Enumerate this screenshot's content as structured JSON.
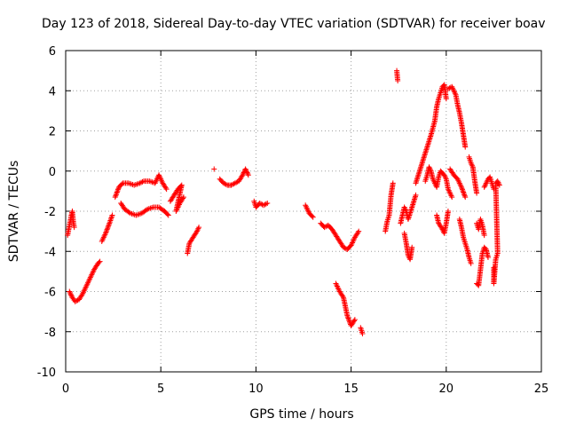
{
  "chart_data": {
    "type": "scatter",
    "title": "Day 123 of 2018, Sidereal Day-to-day VTEC variation (SDTVAR) for receiver boav",
    "xlabel": "GPS time / hours",
    "ylabel": "SDTVAR / TECUs",
    "xlim": [
      0,
      25
    ],
    "ylim": [
      -10,
      6
    ],
    "x_ticks": [
      0,
      5,
      10,
      15,
      20,
      25
    ],
    "y_ticks": [
      -10,
      -8,
      -6,
      -4,
      -2,
      0,
      2,
      4,
      6
    ],
    "grid": true,
    "marker": "+",
    "colors": {
      "series": "#ff0000",
      "grid": "#a0a0a0",
      "axis": "#000000"
    },
    "series": [
      {
        "name": "SDTVAR",
        "segments": [
          [
            [
              0.1,
              -3.2
            ],
            [
              0.2,
              -2.7
            ],
            [
              0.3,
              -2.2
            ],
            [
              0.35,
              -2.0
            ],
            [
              0.4,
              -2.5
            ],
            [
              0.45,
              -2.8
            ]
          ],
          [
            [
              0.2,
              -6.0
            ],
            [
              0.35,
              -6.3
            ],
            [
              0.5,
              -6.5
            ],
            [
              0.7,
              -6.4
            ],
            [
              0.9,
              -6.1
            ],
            [
              1.1,
              -5.7
            ],
            [
              1.3,
              -5.3
            ],
            [
              1.5,
              -4.9
            ],
            [
              1.7,
              -4.6
            ],
            [
              1.8,
              -4.5
            ]
          ],
          [
            [
              1.9,
              -3.5
            ],
            [
              2.1,
              -3.1
            ],
            [
              2.3,
              -2.6
            ],
            [
              2.45,
              -2.2
            ]
          ],
          [
            [
              2.6,
              -1.3
            ],
            [
              2.8,
              -0.8
            ],
            [
              3.0,
              -0.6
            ],
            [
              3.3,
              -0.6
            ],
            [
              3.6,
              -0.7
            ],
            [
              3.9,
              -0.6
            ],
            [
              4.1,
              -0.5
            ],
            [
              4.4,
              -0.5
            ],
            [
              4.7,
              -0.6
            ],
            [
              4.9,
              -0.2
            ],
            [
              5.1,
              -0.6
            ],
            [
              5.3,
              -0.9
            ]
          ],
          [
            [
              2.9,
              -1.6
            ],
            [
              3.1,
              -1.9
            ],
            [
              3.4,
              -2.1
            ],
            [
              3.7,
              -2.2
            ],
            [
              4.0,
              -2.1
            ],
            [
              4.3,
              -1.9
            ],
            [
              4.6,
              -1.8
            ],
            [
              4.9,
              -1.8
            ],
            [
              5.2,
              -2.0
            ],
            [
              5.4,
              -2.2
            ]
          ],
          [
            [
              5.5,
              -1.5
            ],
            [
              5.7,
              -1.2
            ],
            [
              5.9,
              -0.9
            ],
            [
              6.1,
              -0.7
            ],
            [
              5.8,
              -2.0
            ],
            [
              6.0,
              -1.6
            ],
            [
              6.2,
              -1.3
            ]
          ],
          [
            [
              6.4,
              -4.1
            ],
            [
              6.5,
              -3.6
            ],
            [
              6.7,
              -3.3
            ],
            [
              6.9,
              -3.0
            ],
            [
              7.0,
              -2.8
            ]
          ],
          [
            [
              7.8,
              0.1
            ]
          ],
          [
            [
              8.1,
              -0.4
            ],
            [
              8.3,
              -0.6
            ],
            [
              8.5,
              -0.7
            ],
            [
              8.7,
              -0.7
            ],
            [
              8.9,
              -0.6
            ],
            [
              9.1,
              -0.5
            ],
            [
              9.3,
              -0.2
            ],
            [
              9.45,
              0.1
            ],
            [
              9.6,
              -0.2
            ]
          ],
          [
            [
              9.9,
              -1.5
            ],
            [
              10.0,
              -1.8
            ],
            [
              10.2,
              -1.6
            ],
            [
              10.4,
              -1.7
            ],
            [
              10.6,
              -1.6
            ]
          ],
          [
            [
              12.6,
              -1.7
            ],
            [
              12.8,
              -2.1
            ],
            [
              13.0,
              -2.3
            ]
          ],
          [
            [
              13.4,
              -2.6
            ],
            [
              13.6,
              -2.8
            ],
            [
              13.8,
              -2.7
            ],
            [
              14.0,
              -2.9
            ],
            [
              14.2,
              -3.2
            ],
            [
              14.4,
              -3.5
            ],
            [
              14.6,
              -3.8
            ],
            [
              14.8,
              -3.9
            ],
            [
              15.0,
              -3.7
            ],
            [
              15.2,
              -3.3
            ],
            [
              15.4,
              -3.0
            ]
          ],
          [
            [
              14.2,
              -5.6
            ],
            [
              14.4,
              -6.0
            ],
            [
              14.6,
              -6.3
            ],
            [
              14.8,
              -7.2
            ],
            [
              15.0,
              -7.7
            ],
            [
              15.2,
              -7.4
            ]
          ],
          [
            [
              15.5,
              -7.8
            ],
            [
              15.6,
              -8.1
            ]
          ],
          [
            [
              16.8,
              -3.0
            ],
            [
              16.9,
              -2.5
            ],
            [
              17.0,
              -2.2
            ],
            [
              17.1,
              -1.2
            ],
            [
              17.2,
              -0.6
            ]
          ],
          [
            [
              17.4,
              5.0
            ],
            [
              17.45,
              4.5
            ]
          ],
          [
            [
              17.6,
              -2.6
            ],
            [
              17.7,
              -2.2
            ],
            [
              17.8,
              -1.8
            ],
            [
              17.9,
              -2.0
            ],
            [
              18.0,
              -2.4
            ],
            [
              18.2,
              -1.8
            ],
            [
              18.4,
              -1.2
            ]
          ],
          [
            [
              17.8,
              -3.1
            ],
            [
              17.9,
              -3.6
            ],
            [
              18.0,
              -4.2
            ],
            [
              18.1,
              -4.4
            ],
            [
              18.2,
              -3.8
            ]
          ],
          [
            [
              18.4,
              -0.6
            ],
            [
              18.6,
              0.0
            ],
            [
              18.8,
              0.6
            ],
            [
              19.0,
              1.2
            ],
            [
              19.2,
              1.8
            ],
            [
              19.4,
              2.5
            ],
            [
              19.5,
              3.2
            ],
            [
              19.6,
              3.6
            ],
            [
              19.7,
              3.9
            ],
            [
              19.8,
              4.2
            ],
            [
              19.9,
              4.3
            ],
            [
              20.0,
              3.6
            ]
          ],
          [
            [
              18.9,
              -0.5
            ],
            [
              19.0,
              -0.2
            ],
            [
              19.1,
              0.2
            ],
            [
              19.2,
              0.0
            ],
            [
              19.3,
              -0.4
            ],
            [
              19.5,
              -0.8
            ],
            [
              19.6,
              -0.3
            ],
            [
              19.7,
              0.0
            ],
            [
              19.9,
              -0.2
            ],
            [
              20.0,
              -0.4
            ],
            [
              20.1,
              -0.9
            ],
            [
              20.3,
              -1.3
            ]
          ],
          [
            [
              19.5,
              -2.2
            ],
            [
              19.6,
              -2.6
            ],
            [
              19.8,
              -2.9
            ],
            [
              19.9,
              -3.1
            ],
            [
              20.0,
              -2.6
            ],
            [
              20.1,
              -2.0
            ]
          ],
          [
            [
              20.1,
              4.1
            ],
            [
              20.3,
              4.2
            ],
            [
              20.5,
              3.8
            ],
            [
              20.6,
              3.3
            ],
            [
              20.7,
              2.9
            ],
            [
              20.8,
              2.4
            ],
            [
              20.9,
              1.8
            ],
            [
              21.0,
              1.2
            ]
          ],
          [
            [
              20.2,
              0.1
            ],
            [
              20.4,
              -0.2
            ],
            [
              20.6,
              -0.4
            ],
            [
              20.8,
              -0.8
            ],
            [
              21.0,
              -1.3
            ]
          ],
          [
            [
              20.7,
              -2.4
            ],
            [
              20.8,
              -2.8
            ],
            [
              20.9,
              -3.3
            ],
            [
              21.0,
              -3.6
            ],
            [
              21.1,
              -3.9
            ],
            [
              21.2,
              -4.3
            ],
            [
              21.3,
              -4.6
            ]
          ],
          [
            [
              21.2,
              0.7
            ],
            [
              21.3,
              0.4
            ],
            [
              21.4,
              0.2
            ],
            [
              21.5,
              -0.5
            ],
            [
              21.6,
              -1.1
            ]
          ],
          [
            [
              21.6,
              -2.6
            ],
            [
              21.7,
              -2.9
            ],
            [
              21.8,
              -2.4
            ],
            [
              21.9,
              -2.7
            ],
            [
              22.0,
              -3.2
            ]
          ],
          [
            [
              21.6,
              -5.6
            ],
            [
              21.7,
              -5.7
            ],
            [
              21.9,
              -4.1
            ],
            [
              22.0,
              -3.8
            ],
            [
              22.1,
              -3.9
            ],
            [
              22.2,
              -4.3
            ]
          ],
          [
            [
              22.0,
              -0.8
            ],
            [
              22.1,
              -0.6
            ],
            [
              22.2,
              -0.4
            ],
            [
              22.3,
              -0.3
            ],
            [
              22.4,
              -0.6
            ],
            [
              22.5,
              -0.9
            ]
          ],
          [
            [
              22.5,
              -4.8
            ],
            [
              22.5,
              -5.6
            ],
            [
              22.6,
              -4.4
            ],
            [
              22.7,
              -4.1
            ],
            [
              22.6,
              -0.6
            ],
            [
              22.7,
              -0.5
            ],
            [
              22.8,
              -0.7
            ]
          ]
        ]
      }
    ]
  }
}
